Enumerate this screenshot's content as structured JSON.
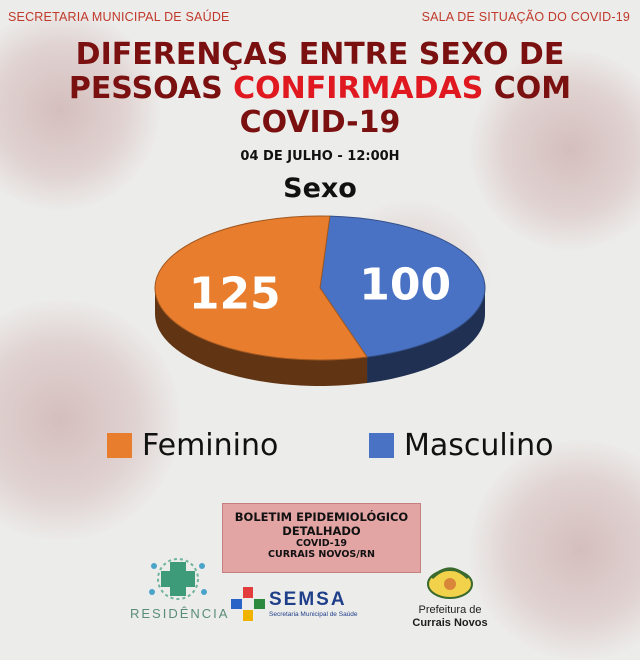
{
  "header": {
    "left": "SECRETARIA MUNICIPAL DE SAÚDE",
    "right": "SALA DE SITUAÇÃO DO COVID-19"
  },
  "title": {
    "line1": "DIFERENÇAS ENTRE SEXO DE",
    "line2_a": "PESSOAS ",
    "line2_highlight": "CONFIRMADAS",
    "line2_b": " COM",
    "line3": "COVID-19"
  },
  "date": "04 DE JULHO - 12:00H",
  "chart_data": {
    "type": "pie",
    "title": "Sexo",
    "categories": [
      "Feminino",
      "Masculino"
    ],
    "values": [
      125,
      100
    ],
    "colors": [
      "#e87d2e",
      "#4a72c4"
    ],
    "legend_position": "bottom"
  },
  "bulletin": {
    "line1": "BOLETIM EPIDEMIOLÓGICO",
    "line2": "DETALHADO",
    "line3": "COVID-19",
    "line4": "CURRAIS NOVOS/RN"
  },
  "logos": {
    "residencia": "RESIDÊNCIA",
    "semsa": "SEMSA",
    "semsa_sub": "Secretaria Municipal de Saúde",
    "prefeitura_1": "Prefeitura de",
    "prefeitura_2": "Currais Novos"
  }
}
